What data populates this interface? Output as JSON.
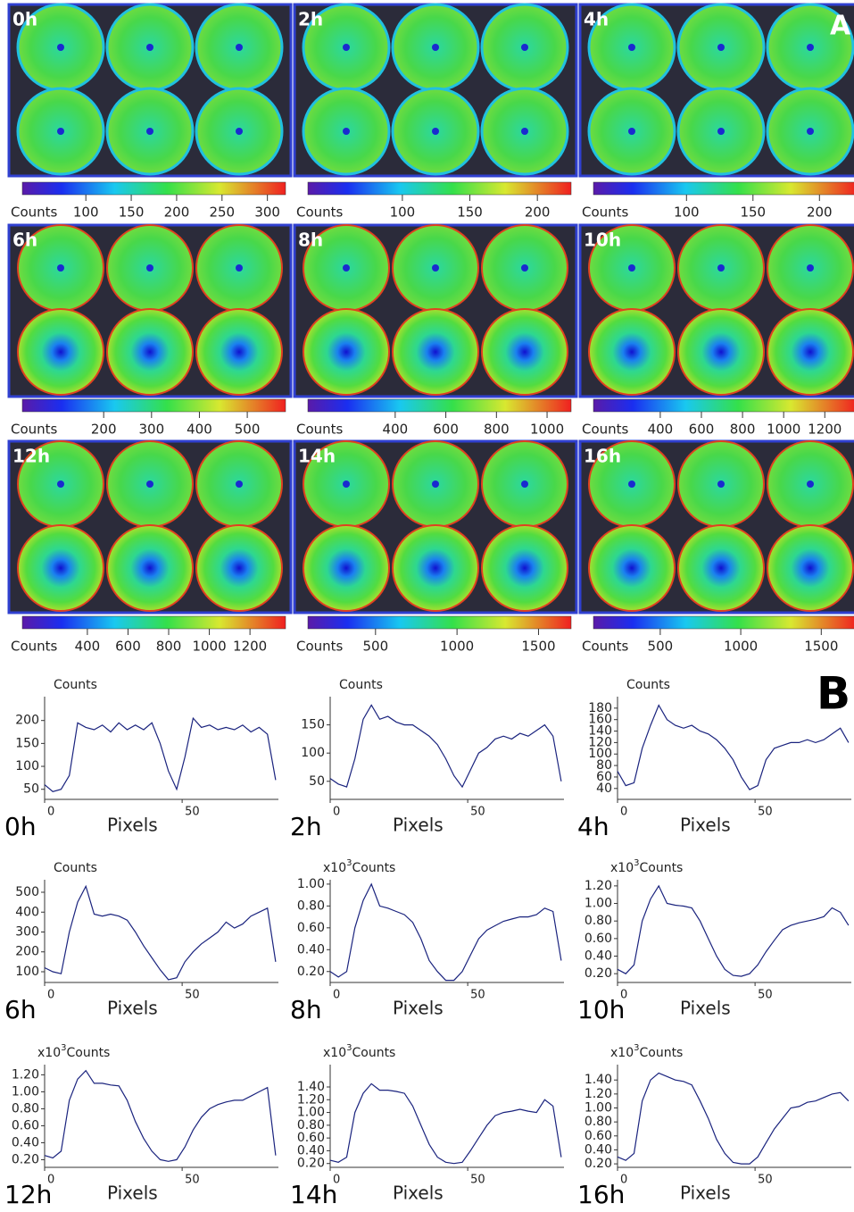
{
  "panel_a": {
    "label": "A",
    "images": [
      {
        "time": "0h",
        "colorbar": {
          "label": "Counts",
          "lim": [
            30,
            320
          ],
          "ticks": [
            100,
            150,
            200,
            250,
            300
          ]
        }
      },
      {
        "time": "2h",
        "colorbar": {
          "label": "Counts",
          "lim": [
            30,
            225
          ],
          "ticks": [
            100,
            150,
            200
          ]
        }
      },
      {
        "time": "4h",
        "colorbar": {
          "label": "Counts",
          "lim": [
            30,
            228
          ],
          "ticks": [
            100,
            150,
            200
          ]
        }
      },
      {
        "time": "6h",
        "colorbar": {
          "label": "Counts",
          "lim": [
            30,
            580
          ],
          "ticks": [
            200,
            300,
            400,
            500
          ]
        }
      },
      {
        "time": "8h",
        "colorbar": {
          "label": "Counts",
          "lim": [
            55,
            1095
          ],
          "ticks": [
            400,
            600,
            800,
            1000
          ]
        }
      },
      {
        "time": "10h",
        "colorbar": {
          "label": "Counts",
          "lim": [
            75,
            1355
          ],
          "ticks": [
            400,
            600,
            800,
            1000,
            1200
          ]
        }
      },
      {
        "time": "12h",
        "colorbar": {
          "label": "Counts",
          "lim": [
            80,
            1375
          ],
          "ticks": [
            400,
            600,
            800,
            1000,
            1200
          ]
        }
      },
      {
        "time": "14h",
        "colorbar": {
          "label": "Counts",
          "lim": [
            85,
            1700
          ],
          "ticks": [
            500,
            1000,
            1500
          ]
        }
      },
      {
        "time": "16h",
        "colorbar": {
          "label": "Counts",
          "lim": [
            85,
            1720
          ],
          "ticks": [
            500,
            1000,
            1500
          ]
        }
      }
    ]
  },
  "panel_b": {
    "label": "B"
  },
  "chart_data": [
    {
      "type": "line",
      "time": "0h",
      "y_label": "Counts",
      "x_label": "Pixels",
      "color": "#1a237e",
      "x": [
        0,
        3,
        6,
        9,
        12,
        15,
        18,
        21,
        24,
        27,
        30,
        33,
        36,
        39,
        42,
        45,
        48,
        51,
        54,
        57,
        60,
        63,
        66,
        69,
        72,
        75,
        78,
        81,
        84
      ],
      "values": [
        60,
        45,
        50,
        80,
        195,
        185,
        180,
        190,
        175,
        195,
        180,
        190,
        180,
        195,
        150,
        90,
        50,
        120,
        205,
        185,
        190,
        180,
        185,
        180,
        190,
        175,
        185,
        170,
        70
      ],
      "xlim": [
        0,
        85
      ],
      "xticks": [
        0,
        50
      ],
      "ylim": [
        28,
        252
      ],
      "yticks": [
        50,
        100,
        150,
        200
      ]
    },
    {
      "type": "line",
      "time": "2h",
      "y_label": "Counts",
      "x_label": "Pixels",
      "color": "#1a237e",
      "x": [
        0,
        3,
        6,
        9,
        12,
        15,
        18,
        21,
        24,
        27,
        30,
        33,
        36,
        39,
        42,
        45,
        48,
        51,
        54,
        57,
        60,
        63,
        66,
        69,
        72,
        75,
        78,
        81,
        84
      ],
      "values": [
        55,
        45,
        40,
        90,
        160,
        185,
        160,
        165,
        155,
        150,
        150,
        140,
        130,
        115,
        90,
        60,
        40,
        70,
        100,
        110,
        125,
        130,
        125,
        135,
        130,
        140,
        150,
        130,
        50
      ],
      "xlim": [
        0,
        85
      ],
      "xticks": [
        0,
        50
      ],
      "ylim": [
        18,
        200
      ],
      "yticks": [
        50,
        100,
        150
      ]
    },
    {
      "type": "line",
      "time": "4h",
      "y_label": "Counts",
      "x_label": "Pixels",
      "color": "#1a237e",
      "x": [
        0,
        3,
        6,
        9,
        12,
        15,
        18,
        21,
        24,
        27,
        30,
        33,
        36,
        39,
        42,
        45,
        48,
        51,
        54,
        57,
        60,
        63,
        66,
        69,
        72,
        75,
        78,
        81,
        84
      ],
      "values": [
        70,
        45,
        50,
        110,
        150,
        185,
        160,
        150,
        145,
        150,
        140,
        135,
        125,
        110,
        90,
        60,
        38,
        45,
        90,
        110,
        115,
        120,
        120,
        125,
        120,
        125,
        135,
        145,
        120
      ],
      "xlim": [
        0,
        85
      ],
      "xticks": [
        0,
        50
      ],
      "ylim": [
        21,
        200
      ],
      "yticks": [
        40,
        60,
        80,
        100,
        120,
        140,
        160,
        180
      ]
    },
    {
      "type": "line",
      "time": "6h",
      "y_label": "Counts",
      "x_label": "Pixels",
      "color": "#1a237e",
      "x": [
        0,
        3,
        6,
        9,
        12,
        15,
        18,
        21,
        24,
        27,
        30,
        33,
        36,
        39,
        42,
        45,
        48,
        51,
        54,
        57,
        60,
        63,
        66,
        69,
        72,
        75,
        78,
        81,
        84
      ],
      "values": [
        120,
        100,
        90,
        300,
        450,
        530,
        390,
        380,
        390,
        380,
        360,
        300,
        230,
        170,
        110,
        60,
        70,
        150,
        200,
        240,
        270,
        300,
        350,
        320,
        340,
        380,
        400,
        420,
        150
      ],
      "xlim": [
        0,
        85
      ],
      "xticks": [
        0,
        50
      ],
      "ylim": [
        46,
        563
      ],
      "yticks": [
        100,
        200,
        300,
        400,
        500
      ]
    },
    {
      "type": "line",
      "time": "8h",
      "y_label_multiplier": "x10",
      "y_label_exponent": "3",
      "y_label": "Counts",
      "x_label": "Pixels",
      "color": "#1a237e",
      "x": [
        0,
        3,
        6,
        9,
        12,
        15,
        18,
        21,
        24,
        27,
        30,
        33,
        36,
        39,
        42,
        45,
        48,
        51,
        54,
        57,
        60,
        63,
        66,
        69,
        72,
        75,
        78,
        81,
        84
      ],
      "values": [
        0.2,
        0.15,
        0.2,
        0.6,
        0.85,
        1.0,
        0.8,
        0.78,
        0.75,
        0.72,
        0.65,
        0.5,
        0.3,
        0.2,
        0.12,
        0.12,
        0.2,
        0.35,
        0.5,
        0.58,
        0.62,
        0.66,
        0.68,
        0.7,
        0.7,
        0.72,
        0.78,
        0.75,
        0.3
      ],
      "xlim": [
        0,
        85
      ],
      "xticks": [
        0,
        50
      ],
      "ylim": [
        0.1,
        1.04
      ],
      "yticks": [
        {
          "value": 0.2,
          "label": "0.20"
        },
        {
          "value": 0.4,
          "label": "0.40"
        },
        {
          "value": 0.6,
          "label": "0.60"
        },
        {
          "value": 0.8,
          "label": "0.80"
        },
        {
          "value": 1,
          "label": "1.00"
        }
      ]
    },
    {
      "type": "line",
      "time": "10h",
      "y_label_multiplier": "x10",
      "y_label_exponent": "3",
      "y_label": "Counts",
      "x_label": "Pixels",
      "color": "#1a237e",
      "x": [
        0,
        3,
        6,
        9,
        12,
        15,
        18,
        21,
        24,
        27,
        30,
        33,
        36,
        39,
        42,
        45,
        48,
        51,
        54,
        57,
        60,
        63,
        66,
        69,
        72,
        75,
        78,
        81,
        84
      ],
      "values": [
        0.25,
        0.2,
        0.3,
        0.8,
        1.05,
        1.2,
        1.0,
        0.98,
        0.97,
        0.95,
        0.8,
        0.6,
        0.4,
        0.25,
        0.18,
        0.17,
        0.2,
        0.3,
        0.45,
        0.58,
        0.7,
        0.75,
        0.78,
        0.8,
        0.82,
        0.85,
        0.95,
        0.9,
        0.75
      ],
      "xlim": [
        0,
        85
      ],
      "xticks": [
        0,
        50
      ],
      "ylim": [
        0.1,
        1.27
      ],
      "yticks": [
        {
          "value": 0.2,
          "label": "0.20"
        },
        {
          "value": 0.4,
          "label": "0.40"
        },
        {
          "value": 0.6,
          "label": "0.60"
        },
        {
          "value": 0.8,
          "label": "0.80"
        },
        {
          "value": 1,
          "label": "1.00"
        },
        {
          "value": 1.2,
          "label": "1.20"
        }
      ]
    },
    {
      "type": "line",
      "time": "12h",
      "y_label_multiplier": "x10",
      "y_label_exponent": "3",
      "y_label": "Counts",
      "x_label": "Pixels",
      "color": "#1a237e",
      "x": [
        0,
        3,
        6,
        9,
        12,
        15,
        18,
        21,
        24,
        27,
        30,
        33,
        36,
        39,
        42,
        45,
        48,
        51,
        54,
        57,
        60,
        63,
        66,
        69,
        72,
        75,
        78,
        81,
        84
      ],
      "values": [
        0.25,
        0.22,
        0.3,
        0.9,
        1.15,
        1.25,
        1.1,
        1.1,
        1.08,
        1.07,
        0.9,
        0.65,
        0.45,
        0.3,
        0.2,
        0.18,
        0.2,
        0.35,
        0.55,
        0.7,
        0.8,
        0.85,
        0.88,
        0.9,
        0.9,
        0.95,
        1.0,
        1.05,
        0.25
      ],
      "xlim": [
        0,
        85
      ],
      "xticks": [
        0,
        50
      ],
      "ylim": [
        0.11,
        1.32
      ],
      "yticks": [
        {
          "value": 0.2,
          "label": "0.20"
        },
        {
          "value": 0.4,
          "label": "0.40"
        },
        {
          "value": 0.6,
          "label": "0.60"
        },
        {
          "value": 0.8,
          "label": "0.80"
        },
        {
          "value": 1,
          "label": "1.00"
        },
        {
          "value": 1.2,
          "label": "1.20"
        }
      ]
    },
    {
      "type": "line",
      "time": "14h",
      "y_label_multiplier": "x10",
      "y_label_exponent": "3",
      "y_label": "Counts",
      "x_label": "Pixels",
      "color": "#1a237e",
      "x": [
        0,
        3,
        6,
        9,
        12,
        15,
        18,
        21,
        24,
        27,
        30,
        33,
        36,
        39,
        42,
        45,
        48,
        51,
        54,
        57,
        60,
        63,
        66,
        69,
        72,
        75,
        78,
        81,
        84
      ],
      "values": [
        0.25,
        0.22,
        0.3,
        1.0,
        1.3,
        1.45,
        1.35,
        1.35,
        1.33,
        1.3,
        1.1,
        0.8,
        0.5,
        0.3,
        0.22,
        0.2,
        0.22,
        0.4,
        0.6,
        0.8,
        0.95,
        1.0,
        1.02,
        1.05,
        1.02,
        1.0,
        1.2,
        1.1,
        0.3
      ],
      "xlim": [
        0,
        85
      ],
      "xticks": [
        0,
        50
      ],
      "ylim": [
        0.14,
        1.75
      ],
      "yticks": [
        {
          "value": 0.2,
          "label": "0.20"
        },
        {
          "value": 0.4,
          "label": "0.40"
        },
        {
          "value": 0.6,
          "label": "0.60"
        },
        {
          "value": 0.8,
          "label": "0.80"
        },
        {
          "value": 1,
          "label": "1.00"
        },
        {
          "value": 1.2,
          "label": "1.20"
        },
        {
          "value": 1.4,
          "label": "1.40"
        }
      ]
    },
    {
      "type": "line",
      "time": "16h",
      "y_label_multiplier": "x10",
      "y_label_exponent": "3",
      "y_label": "Counts",
      "x_label": "Pixels",
      "color": "#1a237e",
      "x": [
        0,
        3,
        6,
        9,
        12,
        15,
        18,
        21,
        24,
        27,
        30,
        33,
        36,
        39,
        42,
        45,
        48,
        51,
        54,
        57,
        60,
        63,
        66,
        69,
        72,
        75,
        78,
        81,
        84
      ],
      "values": [
        0.3,
        0.25,
        0.35,
        1.1,
        1.4,
        1.5,
        1.45,
        1.4,
        1.38,
        1.33,
        1.1,
        0.85,
        0.55,
        0.35,
        0.22,
        0.2,
        0.2,
        0.3,
        0.5,
        0.7,
        0.85,
        1.0,
        1.02,
        1.08,
        1.1,
        1.15,
        1.2,
        1.22,
        1.1
      ],
      "xlim": [
        0,
        85
      ],
      "xticks": [
        0,
        50
      ],
      "ylim": [
        0.15,
        1.62
      ],
      "yticks": [
        {
          "value": 0.2,
          "label": "0.20"
        },
        {
          "value": 0.4,
          "label": "0.40"
        },
        {
          "value": 0.6,
          "label": "0.60"
        },
        {
          "value": 0.8,
          "label": "0.80"
        },
        {
          "value": 1,
          "label": "1.00"
        },
        {
          "value": 1.2,
          "label": "1.20"
        },
        {
          "value": 1.4,
          "label": "1.40"
        }
      ]
    }
  ]
}
